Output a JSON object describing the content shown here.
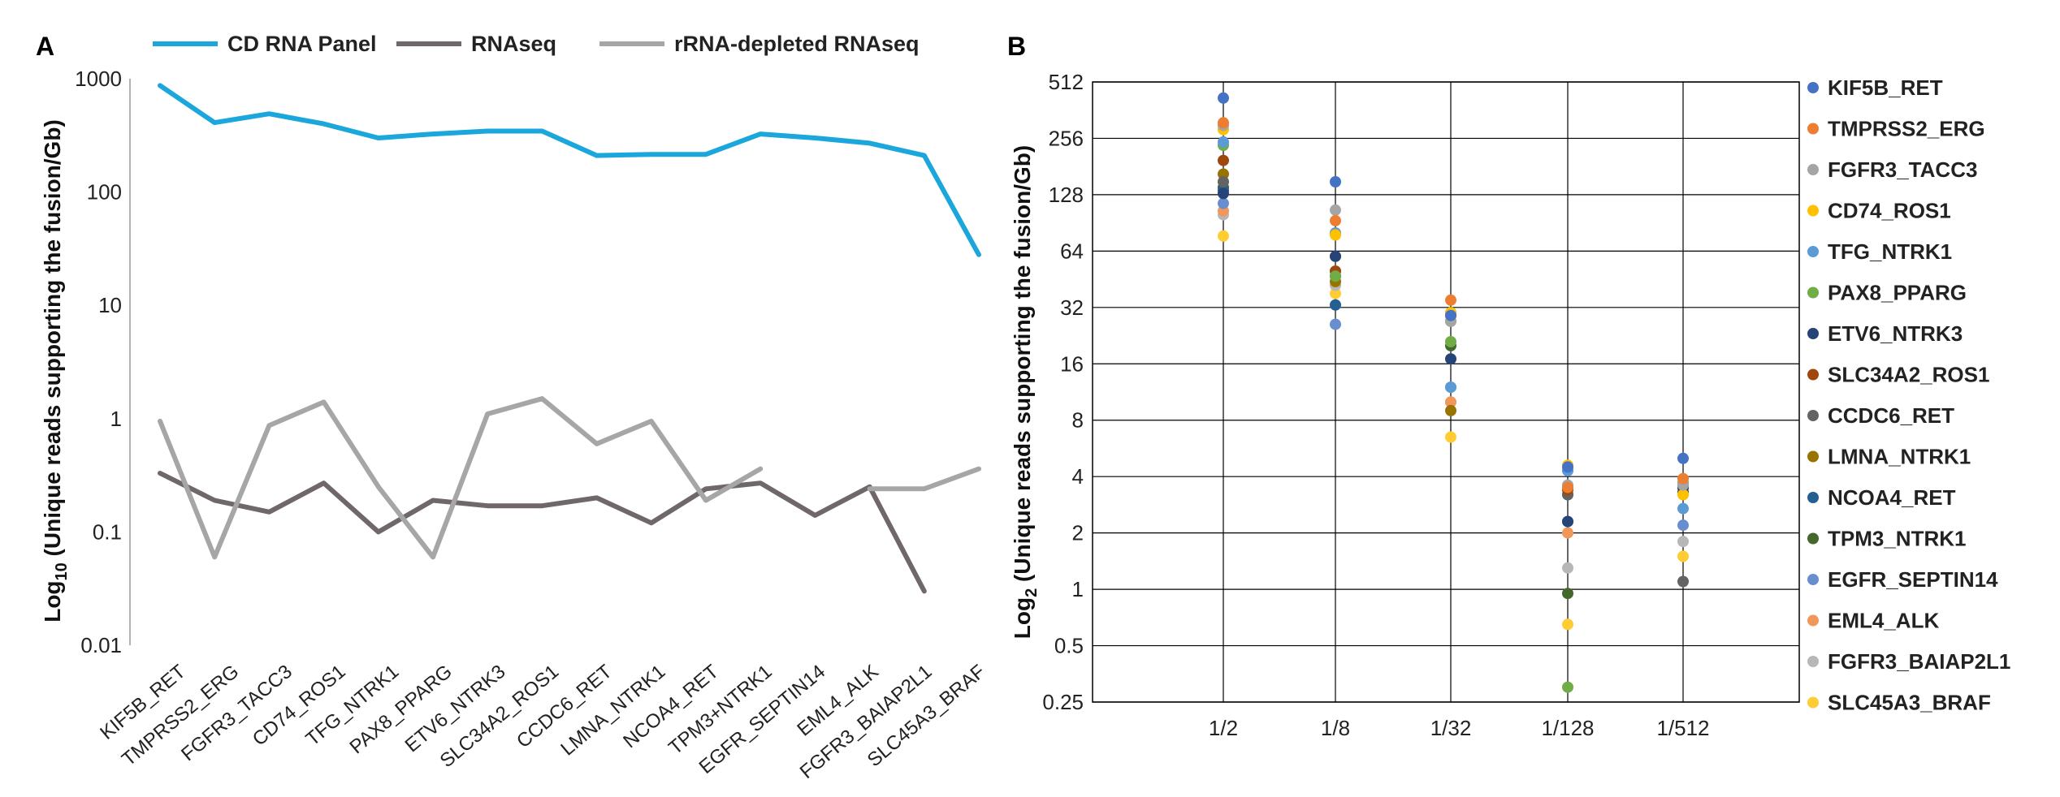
{
  "panels": [
    {
      "label": "A",
      "chart_data": {
        "type": "line",
        "y_scale": "log10",
        "ylim": [
          0.01,
          1000
        ],
        "yticks": [
          "0.01",
          "0.1",
          "1",
          "10",
          "100",
          "1000"
        ],
        "ylabel": {
          "prefix": "Log",
          "sub": "10",
          "rest": " (Unique reads supporting the fusion/Gb)"
        },
        "grid": false,
        "legend_position": "top",
        "categories": [
          "KIF5B_RET",
          "TMPRSS2_ERG",
          "FGFR3_TACC3",
          "CD74_ROS1",
          "TFG_NTRK1",
          "PAX8_PPARG",
          "ETV6_NTRK3",
          "SLC34A2_ROS1",
          "CCDC6_RET",
          "LMNA_NTRK1",
          "NCOA4_RET",
          "TPM3+NTRK1",
          "EGFR_SEPTIN14",
          "EML4_ALK",
          "FGFR3_BAIAP2L1",
          "SLC45A3_BRAF"
        ],
        "series": [
          {
            "name": "CD RNA Panel",
            "color": "#1ba7dc",
            "values": [
              870,
              410,
              490,
              400,
              300,
              325,
              345,
              345,
              210,
              215,
              215,
              325,
              300,
              270,
              210,
              28
            ]
          },
          {
            "name": "RNAseq",
            "color": "#6f6769",
            "values": [
              0.33,
              0.19,
              0.15,
              0.27,
              0.1,
              0.19,
              0.17,
              0.17,
              0.2,
              0.12,
              0.24,
              0.27,
              0.14,
              0.25,
              0.03,
              null
            ]
          },
          {
            "name": "rRNA-depleted RNAseq",
            "color": "#a6a6a6",
            "values": [
              0.95,
              0.06,
              0.87,
              1.4,
              0.25,
              0.06,
              1.1,
              1.5,
              0.6,
              0.95,
              0.19,
              0.36,
              null,
              0.24,
              0.24,
              0.36
            ]
          }
        ]
      }
    },
    {
      "label": "B",
      "chart_data": {
        "type": "scatter",
        "y_scale": "log2",
        "ylim": [
          0.25,
          512
        ],
        "yticks": [
          "0.25",
          "0.5",
          "1",
          "2",
          "4",
          "8",
          "16",
          "32",
          "64",
          "128",
          "256",
          "512"
        ],
        "ylabel": {
          "prefix": "Log",
          "sub": "2",
          "rest": " (Unique reads supporting the fusion/Gb)"
        },
        "grid": true,
        "legend_position": "right",
        "categories": [
          "1/2",
          "1/8",
          "1/32",
          "1/128",
          "1/512"
        ],
        "series": [
          {
            "name": "KIF5B_RET",
            "color": "#4472c4",
            "values": [
              420,
              150,
              29,
              4.5,
              5
            ]
          },
          {
            "name": "TMPRSS2_ERG",
            "color": "#ed7d31",
            "values": [
              310,
              93,
              35,
              3.5,
              3.9
            ]
          },
          {
            "name": "FGFR3_TACC3",
            "color": "#a5a5a5",
            "values": [
              300,
              106,
              27,
              3.6,
              3.6
            ]
          },
          {
            "name": "CD74_ROS1",
            "color": "#ffc000",
            "values": [
              285,
              78,
              30,
              4.6,
              3.2
            ]
          },
          {
            "name": "TFG_NTRK1",
            "color": "#5b9bd5",
            "values": [
              245,
              80,
              12,
              4.3,
              2.7
            ]
          },
          {
            "name": "PAX8_PPARG",
            "color": "#70ad47",
            "values": [
              235,
              47,
              21,
              0.3,
              3.7
            ]
          },
          {
            "name": "ETV6_NTRK3",
            "color": "#264478",
            "values": [
              130,
              60,
              17,
              2.3,
              3.5
            ]
          },
          {
            "name": "SLC34A2_ROS1",
            "color": "#9e480e",
            "values": [
              195,
              50,
              29,
              3.4,
              3.5
            ]
          },
          {
            "name": "CCDC6_RET",
            "color": "#636363",
            "values": [
              150,
              60,
              27,
              3.2,
              1.1
            ]
          },
          {
            "name": "LMNA_NTRK1",
            "color": "#997300",
            "values": [
              165,
              44,
              9,
              3.2,
              3.5
            ]
          },
          {
            "name": "NCOA4_RET",
            "color": "#255e91",
            "values": [
              135,
              33,
              30,
              2.3,
              3.5
            ]
          },
          {
            "name": "TPM3_NTRK1",
            "color": "#43682b",
            "values": [
              140,
              47,
              20,
              0.95,
              3.3
            ]
          },
          {
            "name": "EGFR_SEPTIN14",
            "color": "#698ed0",
            "values": [
              115,
              26,
              12,
              4.3,
              2.2
            ]
          },
          {
            "name": "EML4_ALK",
            "color": "#f1975a",
            "values": [
              105,
              50,
              10,
              2,
              3.3
            ]
          },
          {
            "name": "FGFR3_BAIAP2L1",
            "color": "#b7b7b7",
            "values": [
              100,
              42,
              10,
              1.3,
              1.8
            ]
          },
          {
            "name": "SLC45A3_BRAF",
            "color": "#ffcd33",
            "values": [
              77,
              38,
              6.5,
              0.65,
              1.5
            ]
          }
        ]
      }
    }
  ]
}
